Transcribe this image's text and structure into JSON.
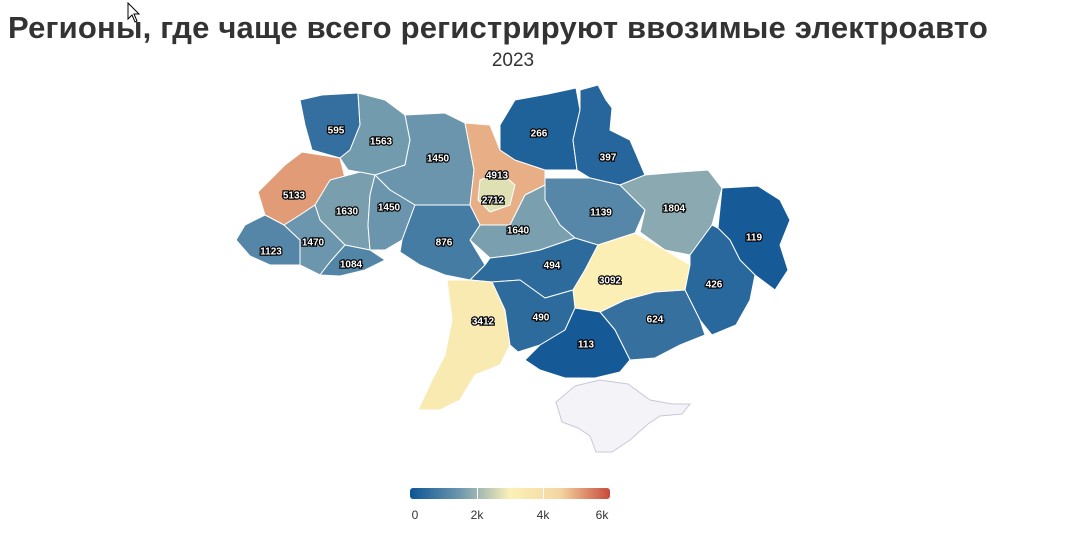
{
  "title": "Регионы, где чаще всего регистрируют ввозимые электроавто",
  "subtitle": "2023",
  "colors": {
    "scale": [
      "#0e5595",
      "#6d97ae",
      "#fbf1b7",
      "#f4d6a2",
      "#c84a3c"
    ],
    "no_data": "#f4f4f8",
    "border": "#ffffff"
  },
  "legend": {
    "ticks": [
      "0",
      "2k",
      "4k",
      "6k"
    ],
    "min": 0,
    "max": 6000
  },
  "regions": [
    {
      "label": "595",
      "value": 595
    },
    {
      "label": "1563",
      "value": 1563
    },
    {
      "label": "1450",
      "value": 1450
    },
    {
      "label": "4913",
      "value": 4913
    },
    {
      "label": "266",
      "value": 266
    },
    {
      "label": "397",
      "value": 397
    },
    {
      "label": "5133",
      "value": 5133
    },
    {
      "label": "2712",
      "value": 2712
    },
    {
      "label": "1630",
      "value": 1630
    },
    {
      "label": "1450",
      "value": 1450
    },
    {
      "label": "1139",
      "value": 1139
    },
    {
      "label": "1804",
      "value": 1804
    },
    {
      "label": "1640",
      "value": 1640
    },
    {
      "label": "1123",
      "value": 1123
    },
    {
      "label": "1470",
      "value": 1470
    },
    {
      "label": "876",
      "value": 876
    },
    {
      "label": "119",
      "value": 119
    },
    {
      "label": "1084",
      "value": 1084
    },
    {
      "label": "494",
      "value": 494
    },
    {
      "label": "3092",
      "value": 3092
    },
    {
      "label": "426",
      "value": 426
    },
    {
      "label": "3412",
      "value": 3412
    },
    {
      "label": "490",
      "value": 490
    },
    {
      "label": "624",
      "value": 624
    },
    {
      "label": "113",
      "value": 113
    }
  ]
}
